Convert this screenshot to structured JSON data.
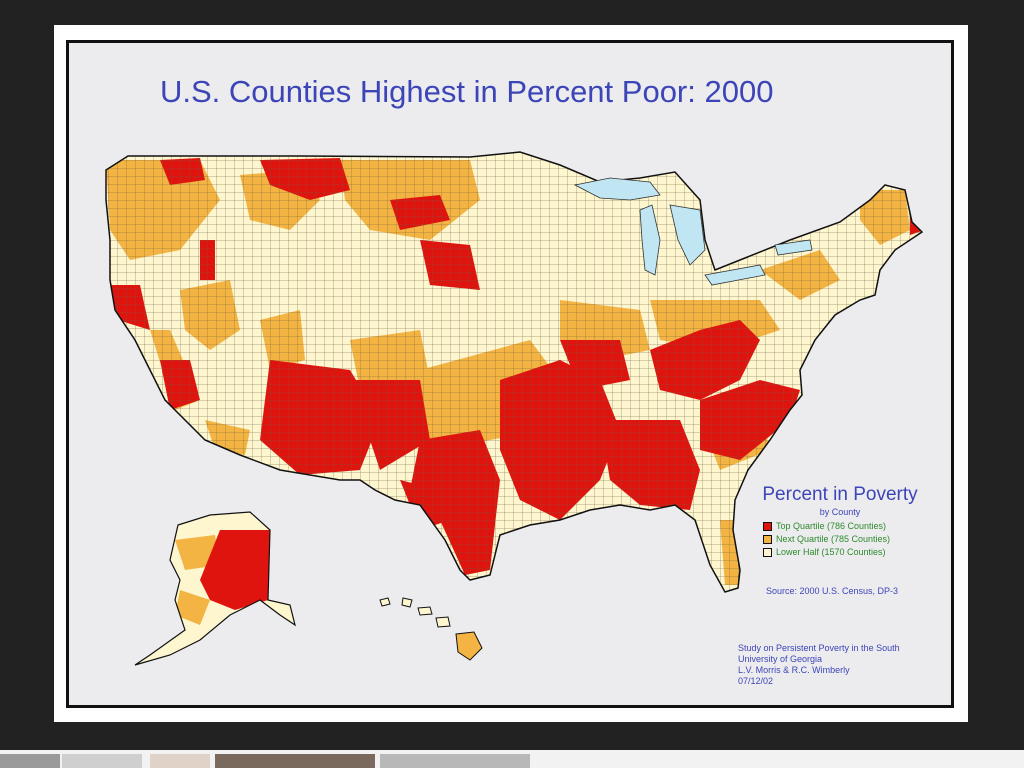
{
  "map": {
    "title": "U.S. Counties Highest in Percent Poor: 2000",
    "legend": {
      "title": "Percent in Poverty",
      "subtitle": "by County",
      "items": [
        {
          "label": "Top Quartile (786 Counties)",
          "color": "#e0140f"
        },
        {
          "label": "Next Quartile (785 Counties)",
          "color": "#f3b443"
        },
        {
          "label": "Lower Half (1570 Counties)",
          "color": "#fdf6cf"
        }
      ]
    },
    "source": "Source: 2000 U.S. Census, DP-3",
    "credits": [
      "Study on Persistent Poverty in the South",
      "University of Georgia",
      "L.V. Morris & R.C. Wimberly",
      "07/12/02"
    ],
    "colors": {
      "title_text": "#3c45b8",
      "legend_text": "#2d8a2d",
      "water": "#bfe6f2",
      "background": "#ececee"
    }
  }
}
